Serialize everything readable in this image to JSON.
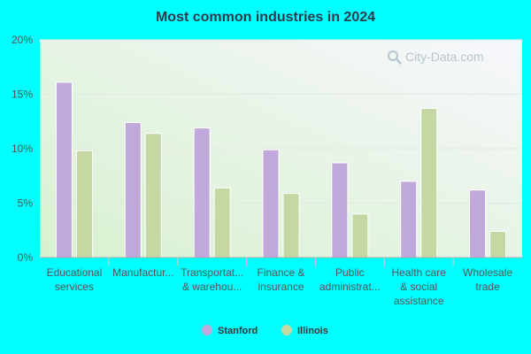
{
  "chart_data": {
    "type": "bar",
    "title": "Most common industries in 2024",
    "categories": [
      [
        "Educational",
        "services"
      ],
      [
        "Manufactur..."
      ],
      [
        "Transportat...",
        "& warehou..."
      ],
      [
        "Finance &",
        "insurance"
      ],
      [
        "Public",
        "administrat..."
      ],
      [
        "Health care",
        "& social",
        "assistance"
      ],
      [
        "Wholesale",
        "trade"
      ]
    ],
    "series": [
      {
        "name": "Stanford",
        "color": "#c0a8da",
        "values": [
          16.1,
          12.4,
          11.9,
          9.9,
          8.7,
          7.0,
          6.2
        ]
      },
      {
        "name": "Illinois",
        "color": "#c5d8a4",
        "values": [
          9.8,
          11.4,
          6.4,
          5.9,
          4.0,
          13.7,
          2.4
        ]
      }
    ],
    "ylim": [
      0,
      20
    ],
    "yticks": [
      "0%",
      "5%",
      "10%",
      "15%",
      "20%"
    ],
    "grid": true,
    "legend_position": "bottom-center"
  },
  "watermark": {
    "text": "City-Data.com",
    "icon": "magnifier-icon"
  }
}
